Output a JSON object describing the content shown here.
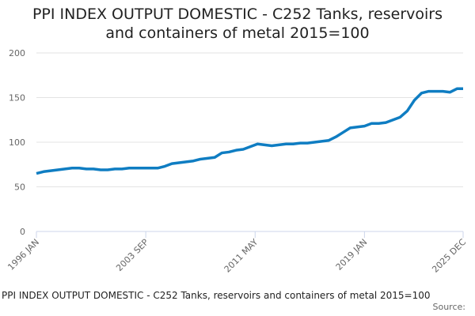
{
  "chart_data": {
    "type": "line",
    "title": "PPI INDEX OUTPUT DOMESTIC - C252 Tanks, reservoirs and containers of metal 2015=100",
    "caption": "PPI INDEX OUTPUT DOMESTIC - C252 Tanks, reservoirs and containers of metal 2015=100",
    "source": "Source:",
    "x": [
      "1996 JAN",
      "1996 JUL",
      "1997 JAN",
      "1997 JUL",
      "1998 JAN",
      "1998 JUL",
      "1999 JAN",
      "1999 JUL",
      "2000 JAN",
      "2000 JUL",
      "2001 JAN",
      "2001 JUL",
      "2002 JAN",
      "2002 JUL",
      "2003 JAN",
      "2003 JUL",
      "2004 JAN",
      "2004 JUL",
      "2005 JAN",
      "2005 JUL",
      "2006 JAN",
      "2006 JUL",
      "2007 JAN",
      "2007 JUL",
      "2008 JAN",
      "2008 JUL",
      "2009 JAN",
      "2009 JUL",
      "2010 JAN",
      "2010 JUL",
      "2011 JAN",
      "2011 JUL",
      "2012 JAN",
      "2012 JUL",
      "2013 JAN",
      "2013 JUL",
      "2014 JAN",
      "2014 JUL",
      "2015 JAN",
      "2015 JUL",
      "2016 JAN",
      "2016 JUL",
      "2017 JAN",
      "2017 JUL",
      "2018 JAN",
      "2018 JUL",
      "2019 JAN",
      "2019 JUL",
      "2020 JAN",
      "2020 JUL",
      "2021 JAN",
      "2021 JUL",
      "2022 JAN",
      "2022 JUL",
      "2023 JAN",
      "2023 JUL",
      "2024 JAN",
      "2024 JUL",
      "2025 JAN",
      "2025 JUL",
      "2025 DEC"
    ],
    "values": [
      65,
      67,
      68,
      69,
      70,
      71,
      71,
      70,
      70,
      69,
      69,
      70,
      70,
      71,
      71,
      71,
      71,
      71,
      73,
      76,
      77,
      78,
      79,
      81,
      82,
      83,
      88,
      89,
      91,
      92,
      95,
      98,
      97,
      96,
      97,
      98,
      98,
      99,
      99,
      100,
      101,
      102,
      106,
      111,
      116,
      117,
      118,
      121,
      121,
      122,
      125,
      128,
      135,
      147,
      155,
      157,
      157,
      157,
      156,
      160,
      160
    ],
    "color": "#0f7dc2",
    "xlim": [
      "1996 JAN",
      "2025 DEC"
    ],
    "xticks": [
      "1996 JAN",
      "2003 SEP",
      "2011 MAY",
      "2019 JAN",
      "2025 DEC"
    ],
    "ylim": [
      0,
      200
    ],
    "yticks": [
      0,
      50,
      100,
      150,
      200
    ],
    "grid": true
  }
}
